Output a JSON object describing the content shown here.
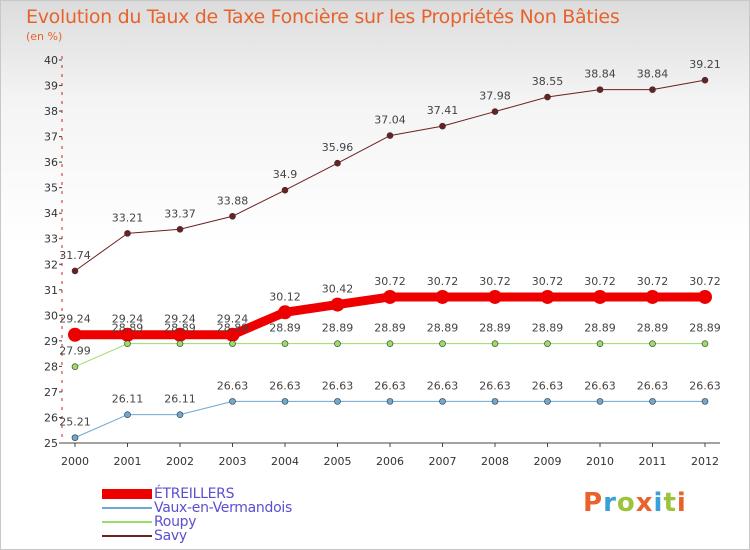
{
  "title": "Evolution du Taux de Taxe Foncière sur les Propriétés Non Bâties",
  "subtitle": "(en %)",
  "logo": {
    "text": "Proxiti",
    "colors": [
      "#e8622a",
      "#3aa0d8",
      "#9cc43a",
      "#e8622a",
      "#3aa0d8",
      "#9cc43a",
      "#e8622a"
    ]
  },
  "chart_data": {
    "type": "line",
    "title": "Evolution du Taux de Taxe Foncière sur les Propriétés Non Bâties",
    "ylabel": "(en %)",
    "xlabel": "",
    "x": [
      "2000",
      "2001",
      "2002",
      "2003",
      "2004",
      "2005",
      "2006",
      "2007",
      "2008",
      "2009",
      "2010",
      "2011",
      "2012"
    ],
    "yticks": [
      25,
      26,
      27,
      28,
      29,
      30,
      31,
      32,
      33,
      34,
      35,
      36,
      37,
      38,
      39,
      40
    ],
    "ylim": [
      25,
      40
    ],
    "grid": false,
    "legend_position": "bottom-left",
    "series": [
      {
        "name": "Savy",
        "color": "#6e1f1f",
        "line_width": 1,
        "values": [
          31.74,
          33.21,
          33.37,
          33.88,
          34.9,
          35.96,
          37.04,
          37.41,
          37.98,
          38.55,
          38.84,
          38.84,
          39.21
        ],
        "labels": [
          "31.74",
          "33.21",
          "33.37",
          "33.88",
          "34.9",
          "35.96",
          "37.04",
          "37.41",
          "37.98",
          "38.55",
          "38.84",
          "38.84",
          "39.21"
        ]
      },
      {
        "name": "ÉTREILLERS",
        "color": "#ee0000",
        "line_width": 9,
        "values": [
          29.24,
          29.24,
          29.24,
          29.24,
          30.12,
          30.42,
          30.72,
          30.72,
          30.72,
          30.72,
          30.72,
          30.72,
          30.72
        ],
        "labels": [
          "29.24",
          "29.24",
          "29.24",
          "29.24",
          "30.12",
          "30.42",
          "30.72",
          "30.72",
          "30.72",
          "30.72",
          "30.72",
          "30.72",
          "30.72"
        ]
      },
      {
        "name": "Roupy",
        "color": "#99dd66",
        "line_width": 1,
        "values": [
          27.99,
          28.89,
          28.89,
          28.89,
          28.89,
          28.89,
          28.89,
          28.89,
          28.89,
          28.89,
          28.89,
          28.89,
          28.89
        ],
        "labels": [
          "27.99",
          "28.89",
          "28.89",
          "28.89",
          "28.89",
          "28.89",
          "28.89",
          "28.89",
          "28.89",
          "28.89",
          "28.89",
          "28.89",
          "28.89"
        ]
      },
      {
        "name": "Vaux-en-Vermandois",
        "color": "#6fa8d0",
        "line_width": 1,
        "values": [
          25.21,
          26.11,
          26.11,
          26.63,
          26.63,
          26.63,
          26.63,
          26.63,
          26.63,
          26.63,
          26.63,
          26.63,
          26.63
        ],
        "labels": [
          "25.21",
          "26.11",
          "26.11",
          "26.63",
          "26.63",
          "26.63",
          "26.63",
          "26.63",
          "26.63",
          "26.63",
          "26.63",
          "26.63",
          "26.63"
        ]
      }
    ]
  },
  "legend": [
    {
      "label": "ÉTREILLERS",
      "color": "#ee0000"
    },
    {
      "label": "Vaux-en-Vermandois",
      "color": "#6fa8d0"
    },
    {
      "label": "Roupy",
      "color": "#99dd66"
    },
    {
      "label": "Savy",
      "color": "#6e1f1f"
    }
  ]
}
